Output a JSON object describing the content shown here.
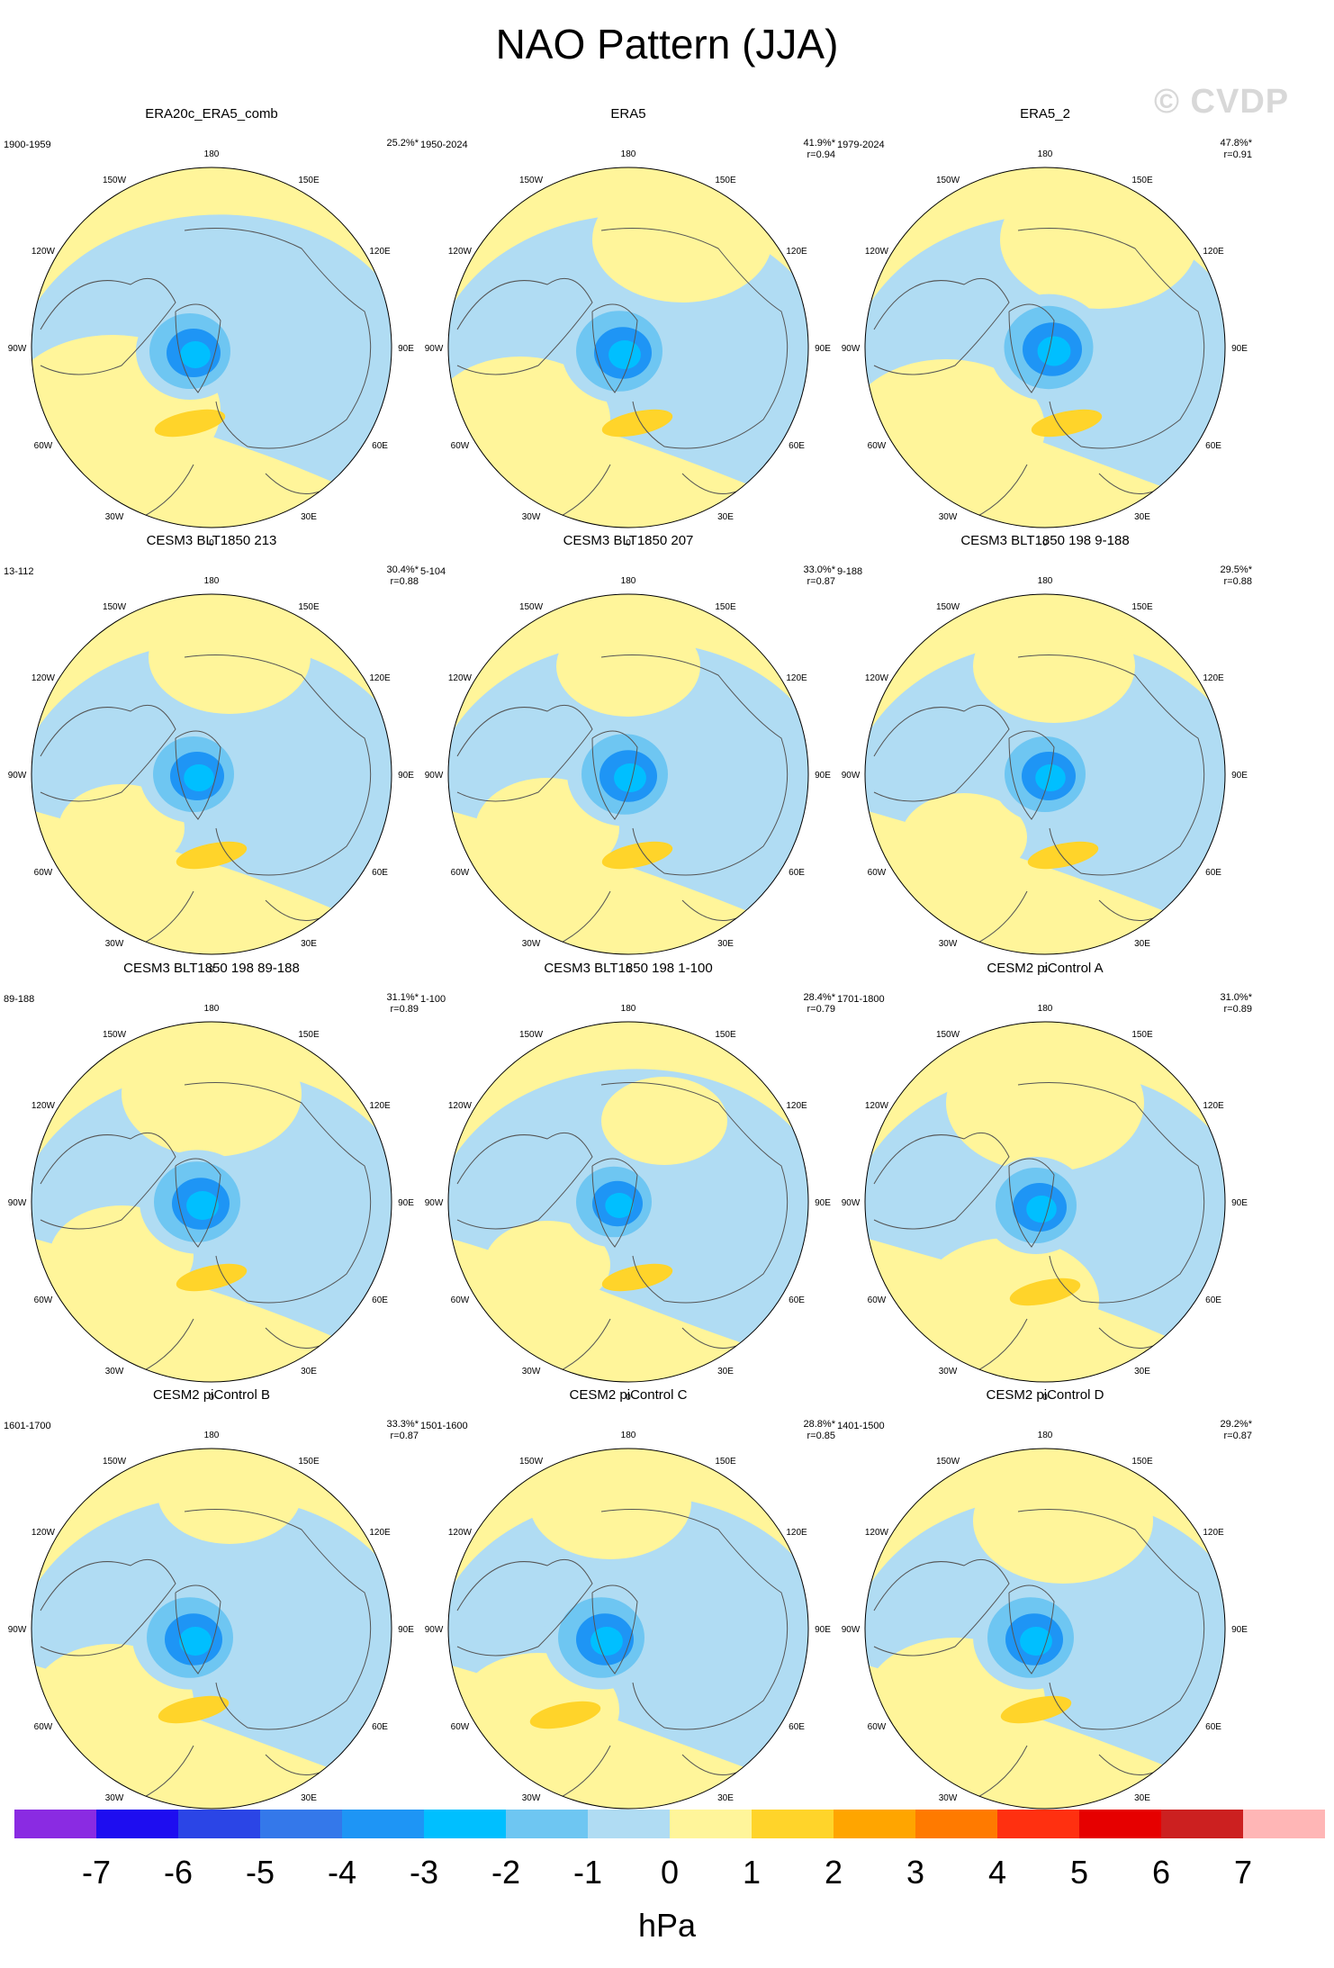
{
  "title": "NAO Pattern (JJA)",
  "watermark": "© CVDP",
  "lon_labels": [
    "180",
    "150E",
    "120E",
    "90E",
    "60E",
    "30E",
    "0",
    "30W",
    "60W",
    "90W",
    "120W",
    "150W"
  ],
  "panels": [
    {
      "title": "ERA20c_ERA5_comb",
      "period": "1900-1959",
      "pct": "25.2%*",
      "r": ""
    },
    {
      "title": "ERA5",
      "period": "1950-2024",
      "pct": "41.9%*",
      "r": "r=0.94"
    },
    {
      "title": "ERA5_2",
      "period": "1979-2024",
      "pct": "47.8%*",
      "r": "r=0.91"
    },
    {
      "title": "CESM3 BLT1850 213",
      "period": "13-112",
      "pct": "30.4%*",
      "r": "r=0.88"
    },
    {
      "title": "CESM3 BLT1850 207",
      "period": "5-104",
      "pct": "33.0%*",
      "r": "r=0.87"
    },
    {
      "title": "CESM3 BLT1850 198 9-188",
      "period": "9-188",
      "pct": "29.5%*",
      "r": "r=0.88"
    },
    {
      "title": "CESM3 BLT1850 198 89-188",
      "period": "89-188",
      "pct": "31.1%*",
      "r": "r=0.89"
    },
    {
      "title": "CESM3 BLT1850 198 1-100",
      "period": "1-100",
      "pct": "28.4%*",
      "r": "r=0.79"
    },
    {
      "title": "CESM2 piControl A",
      "period": "1701-1800",
      "pct": "31.0%*",
      "r": "r=0.89"
    },
    {
      "title": "CESM2 piControl B",
      "period": "1601-1700",
      "pct": "33.3%*",
      "r": "r=0.87"
    },
    {
      "title": "CESM2 piControl C",
      "period": "1501-1600",
      "pct": "28.8%*",
      "r": "r=0.85"
    },
    {
      "title": "CESM2 piControl D",
      "period": "1401-1500",
      "pct": "29.2%*",
      "r": "r=0.87"
    }
  ],
  "colorbar": {
    "colors": [
      "#8a2be2",
      "#1e0df0",
      "#2b45e6",
      "#3478ea",
      "#1e95f5",
      "#00bfff",
      "#6ec6f2",
      "#b0dcf3",
      "#fff59a",
      "#ffd42a",
      "#ffa500",
      "#ff7a00",
      "#ff3010",
      "#e60000",
      "#cc2020",
      "#ffb6b6"
    ],
    "labels": [
      "-7",
      "-6",
      "-5",
      "-4",
      "-3",
      "-2",
      "-1",
      "0",
      "1",
      "2",
      "3",
      "4",
      "5",
      "6",
      "7"
    ],
    "unit": "hPa"
  }
}
